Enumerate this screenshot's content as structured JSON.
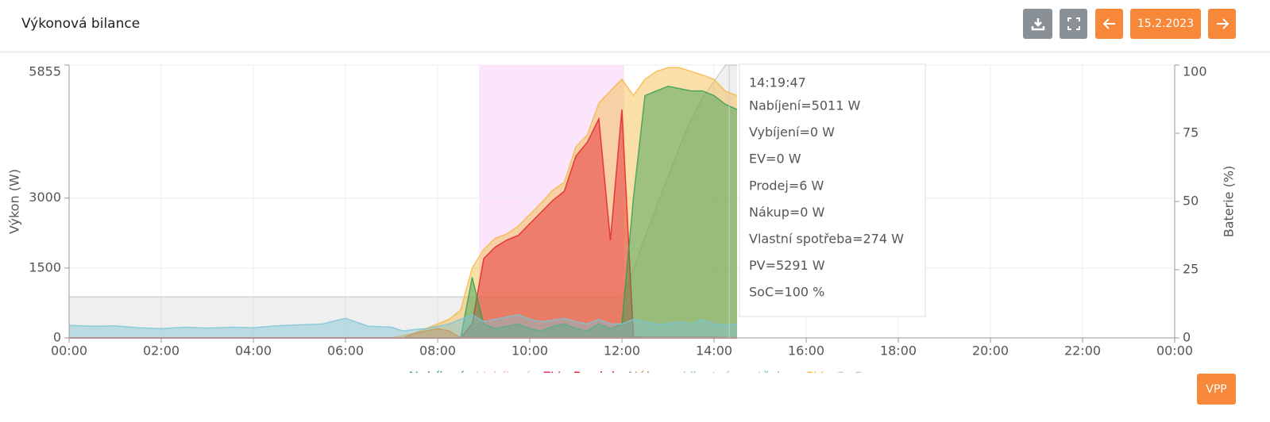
{
  "header": {
    "title": "Výkonová bilance",
    "date_button": "15.2.2023",
    "vpp_button": "VPP"
  },
  "chart_data": {
    "type": "area",
    "x": [
      0,
      0.5,
      1,
      1.5,
      2,
      2.5,
      3,
      3.5,
      4,
      4.5,
      5,
      5.5,
      6,
      6.5,
      7,
      7.25,
      7.5,
      7.75,
      8,
      8.25,
      8.5,
      8.75,
      9,
      9.25,
      9.5,
      9.75,
      10,
      10.25,
      10.5,
      10.75,
      11,
      11.25,
      11.5,
      11.75,
      12,
      12.25,
      12.5,
      12.75,
      13,
      13.25,
      13.5,
      13.75,
      14,
      14.25,
      14.5
    ],
    "xlim": [
      0,
      24
    ],
    "xticks": [
      {
        "value": 0,
        "label": "00:00"
      },
      {
        "value": 2,
        "label": "02:00"
      },
      {
        "value": 4,
        "label": "04:00"
      },
      {
        "value": 6,
        "label": "06:00"
      },
      {
        "value": 8,
        "label": "08:00"
      },
      {
        "value": 10,
        "label": "10:00"
      },
      {
        "value": 12,
        "label": "12:00"
      },
      {
        "value": 14,
        "label": "14:00"
      },
      {
        "value": 16,
        "label": "16:00"
      },
      {
        "value": 18,
        "label": "18:00"
      },
      {
        "value": 20,
        "label": "20:00"
      },
      {
        "value": 22,
        "label": "22:00"
      },
      {
        "value": 24,
        "label": "00:00"
      }
    ],
    "ylim": [
      0,
      5855
    ],
    "yticks": [
      0,
      1500,
      3000,
      5855
    ],
    "y_label": "Výkon (W)",
    "y2lim": [
      0,
      100
    ],
    "y2ticks": [
      0,
      25,
      50,
      75,
      100
    ],
    "y2_label": "Baterie (%)",
    "grid": true,
    "highlight": {
      "range": [
        8.9,
        12.05
      ],
      "color": "#fbe4fc"
    },
    "series": [
      {
        "name": "SoC",
        "color": "#c9c9c9",
        "axis": "y2",
        "values": [
          15,
          15,
          15,
          15,
          15,
          15,
          15,
          15,
          15,
          15,
          15,
          15,
          15,
          15,
          15,
          15,
          15,
          15,
          15,
          15,
          15,
          15,
          15,
          15,
          15,
          15,
          15,
          15,
          15,
          15,
          15,
          15,
          15,
          15,
          15,
          25,
          37,
          48,
          59,
          70,
          80,
          88,
          94,
          100,
          100
        ]
      },
      {
        "name": "PV",
        "color": "#f5b83d",
        "values": [
          0,
          0,
          0,
          0,
          0,
          0,
          0,
          0,
          0,
          0,
          0,
          0,
          0,
          0,
          0,
          50,
          100,
          200,
          300,
          400,
          600,
          1500,
          1900,
          2140,
          2230,
          2400,
          2650,
          2900,
          3170,
          3340,
          4100,
          4360,
          5040,
          5300,
          5550,
          5200,
          5550,
          5720,
          5800,
          5800,
          5720,
          5640,
          5550,
          5291,
          5200
        ]
      },
      {
        "name": "Prodej",
        "color": "#e31b23",
        "values": [
          0,
          0,
          0,
          0,
          0,
          0,
          0,
          0,
          0,
          0,
          0,
          0,
          0,
          0,
          0,
          0,
          0,
          0,
          0,
          0,
          0,
          300,
          1700,
          1950,
          2100,
          2200,
          2450,
          2700,
          2950,
          3150,
          3900,
          4200,
          4700,
          2100,
          4900,
          20,
          10,
          10,
          10,
          10,
          10,
          10,
          10,
          6,
          6
        ]
      },
      {
        "name": "Nabíjení",
        "color": "#2e9e4f",
        "values": [
          0,
          0,
          0,
          0,
          0,
          0,
          0,
          0,
          0,
          0,
          0,
          0,
          0,
          0,
          0,
          0,
          0,
          0,
          0,
          0,
          0,
          1300,
          300,
          200,
          250,
          300,
          200,
          150,
          250,
          300,
          200,
          150,
          300,
          200,
          300,
          3000,
          5200,
          5300,
          5400,
          5350,
          5300,
          5300,
          5200,
          5011,
          4900
        ]
      },
      {
        "name": "Vlastní spotřeba",
        "color": "#7cc4d4",
        "values": [
          270,
          250,
          260,
          220,
          200,
          230,
          210,
          230,
          220,
          260,
          280,
          300,
          420,
          250,
          230,
          150,
          180,
          200,
          250,
          300,
          400,
          500,
          350,
          400,
          450,
          500,
          400,
          350,
          380,
          420,
          350,
          300,
          400,
          300,
          300,
          400,
          350,
          300,
          300,
          350,
          300,
          400,
          300,
          274,
          300
        ]
      },
      {
        "name": "Nákup",
        "color": "#c4955a",
        "values": [
          0,
          0,
          0,
          0,
          0,
          0,
          0,
          0,
          0,
          0,
          0,
          0,
          0,
          0,
          0,
          0,
          100,
          150,
          200,
          150,
          0,
          0,
          0,
          0,
          0,
          0,
          0,
          0,
          0,
          0,
          0,
          0,
          0,
          0,
          0,
          0,
          0,
          0,
          0,
          0,
          0,
          0,
          0,
          0,
          0
        ]
      },
      {
        "name": "EV",
        "color": "#e0245e",
        "values": [
          0,
          0,
          0,
          0,
          0,
          0,
          0,
          0,
          0,
          0,
          0,
          0,
          0,
          0,
          0,
          0,
          0,
          0,
          0,
          0,
          0,
          0,
          0,
          0,
          0,
          0,
          0,
          0,
          0,
          0,
          0,
          0,
          0,
          0,
          0,
          0,
          0,
          0,
          0,
          0,
          0,
          0,
          0,
          0,
          0
        ]
      },
      {
        "name": "Vybíjení",
        "color": "#f7b6c2",
        "values": [
          0,
          0,
          0,
          0,
          0,
          0,
          0,
          0,
          0,
          0,
          0,
          0,
          0,
          0,
          0,
          0,
          0,
          0,
          0,
          0,
          0,
          0,
          0,
          0,
          0,
          0,
          0,
          0,
          0,
          0,
          0,
          0,
          0,
          0,
          0,
          0,
          0,
          0,
          0,
          0,
          0,
          0,
          0,
          0,
          0
        ]
      }
    ],
    "legend_order": [
      3,
      7,
      6,
      2,
      5,
      4,
      1,
      0
    ],
    "tooltip": {
      "title": "14:19:47",
      "x": 14.33,
      "lines": [
        "Nabíjení=5011 W",
        "Vybíjení=0 W",
        "EV=0 W",
        "Prodej=6 W",
        "Nákup=0 W",
        "Vlastní spotřeba=274 W",
        "PV=5291 W",
        "SoC=100 %"
      ],
      "line_series": [
        3,
        7,
        6,
        2,
        5,
        4,
        1,
        0
      ]
    }
  }
}
